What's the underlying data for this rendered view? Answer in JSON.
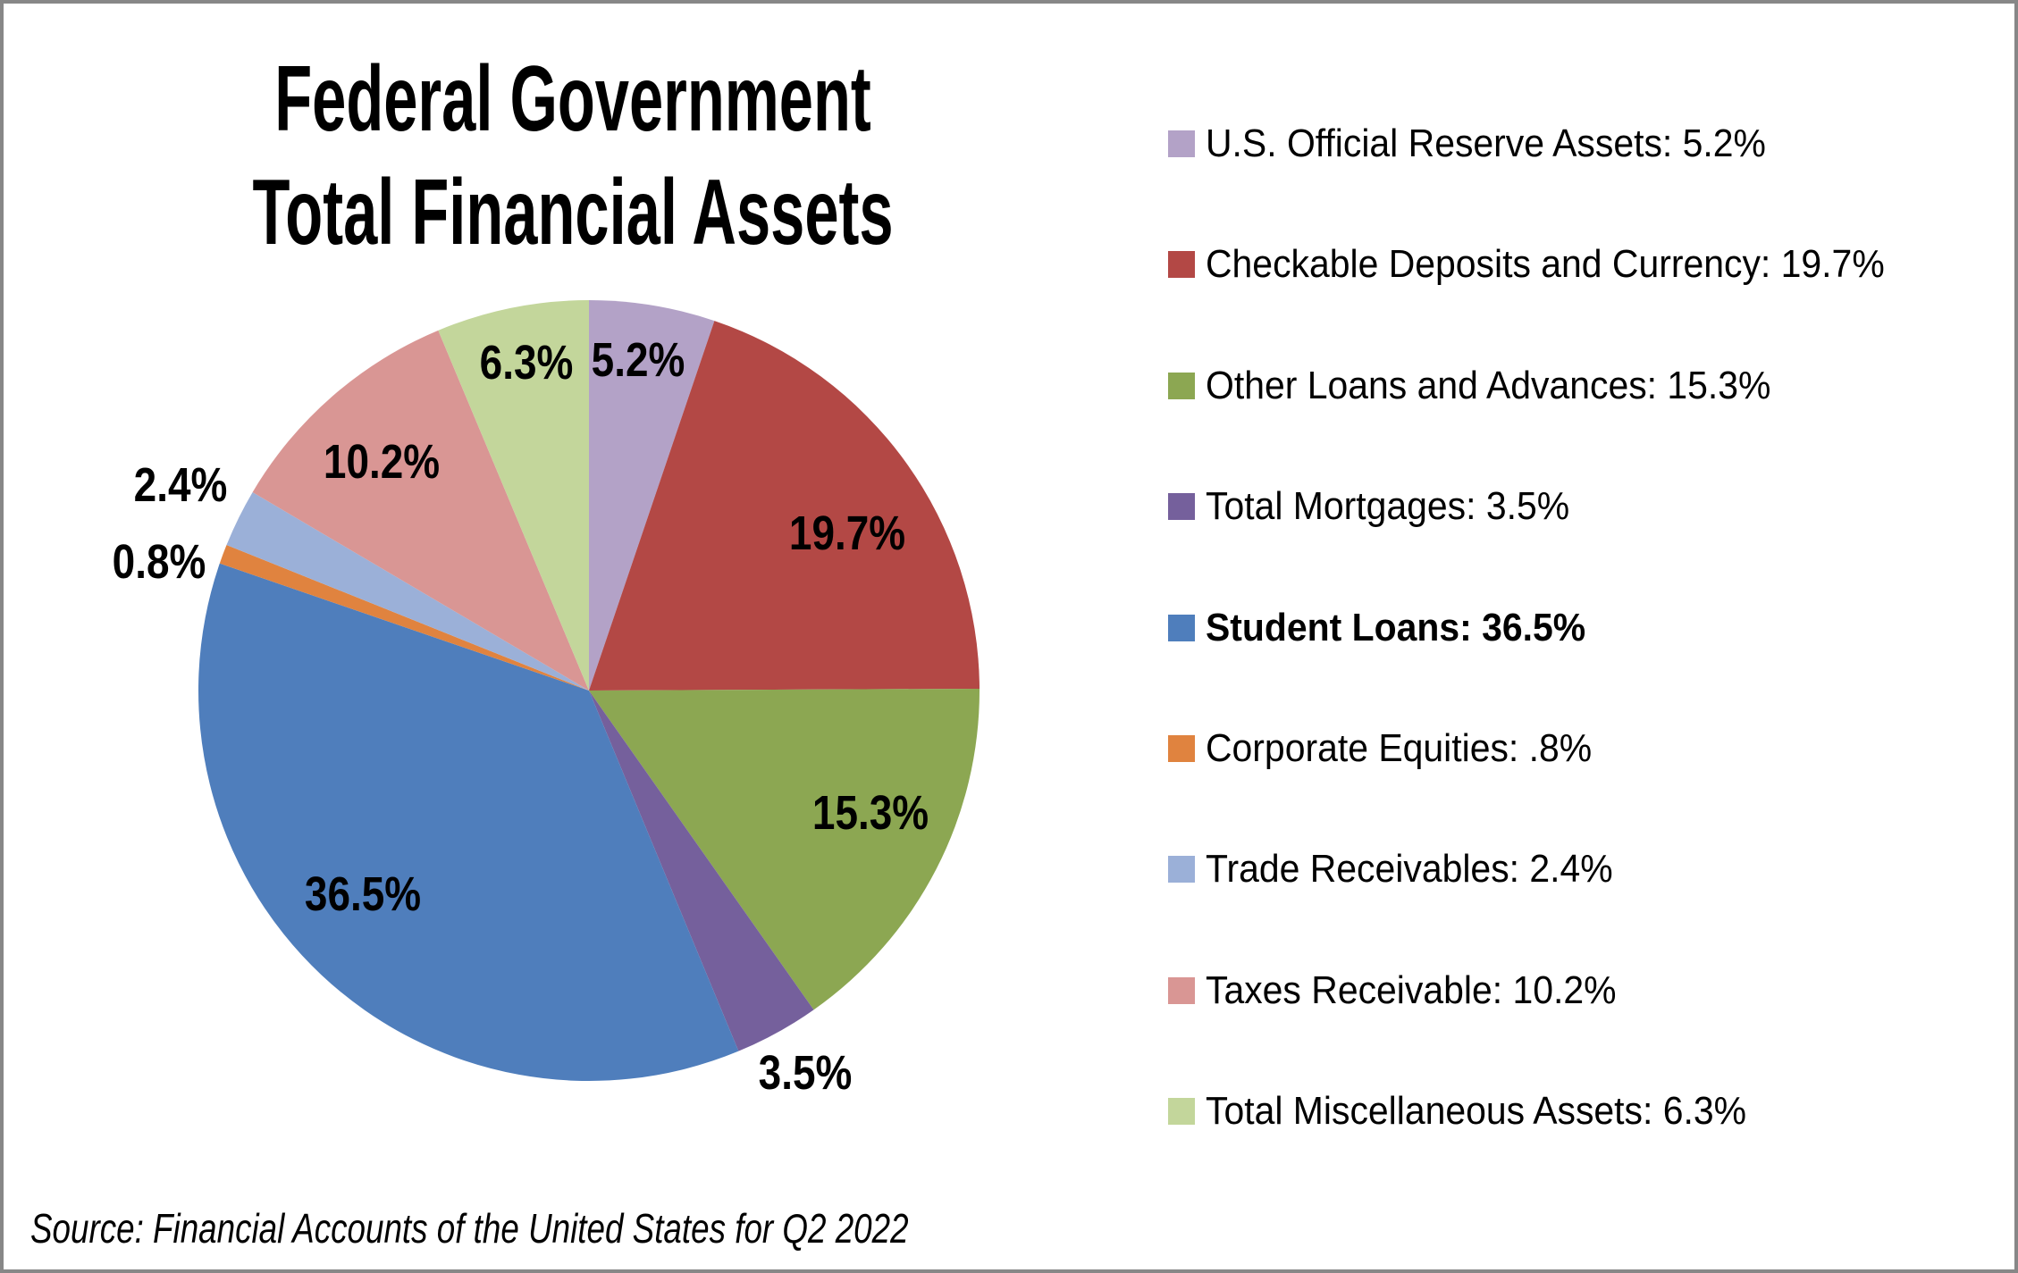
{
  "title": {
    "line1": "Federal Government",
    "line2": "Total Financial Assets"
  },
  "source_note": "Source: Financial Accounts of the United States for Q2 2022",
  "chart_data": {
    "type": "pie",
    "title": "Federal Government Total Financial Assets",
    "legend_position": "right",
    "start_angle_deg": 0,
    "direction": "clockwise",
    "total_percent": 99.9,
    "slices": [
      {
        "label": "U.S. Official Reserve Assets",
        "value": 5.2,
        "pie_label": "5.2%",
        "legend_text": "U.S. Official Reserve Assets: 5.2%",
        "color": "#B3A2C7",
        "bold_legend": false
      },
      {
        "label": "Checkable Deposits and Currency",
        "value": 19.7,
        "pie_label": "19.7%",
        "legend_text": "Checkable Deposits and Currency: 19.7%",
        "color": "#B34845",
        "bold_legend": false
      },
      {
        "label": "Other Loans and Advances",
        "value": 15.3,
        "pie_label": "15.3%",
        "legend_text": "Other Loans and Advances: 15.3%",
        "color": "#8CA752",
        "bold_legend": false
      },
      {
        "label": "Total Mortgages",
        "value": 3.5,
        "pie_label": "3.5%",
        "legend_text": "Total Mortgages: 3.5%",
        "color": "#75609C",
        "bold_legend": false
      },
      {
        "label": "Student Loans",
        "value": 36.5,
        "pie_label": "36.5%",
        "legend_text": "Student Loans: 36.5%",
        "color": "#4F7EBC",
        "bold_legend": true
      },
      {
        "label": "Corporate Equities",
        "value": 0.8,
        "pie_label": "0.8%",
        "legend_text": "Corporate Equities: .8%",
        "color": "#E0833F",
        "bold_legend": false
      },
      {
        "label": "Trade Receivables",
        "value": 2.4,
        "pie_label": "2.4%",
        "legend_text": "Trade Receivables: 2.4%",
        "color": "#9BB0D8",
        "bold_legend": false
      },
      {
        "label": "Taxes Receivable",
        "value": 10.2,
        "pie_label": "10.2%",
        "legend_text": "Taxes Receivable: 10.2%",
        "color": "#D99694",
        "bold_legend": false
      },
      {
        "label": "Total Miscellaneous Assets",
        "value": 6.3,
        "pie_label": "6.3%",
        "legend_text": "Total Miscellaneous Assets: 6.3%",
        "color": "#C3D69B",
        "bold_legend": false
      }
    ]
  }
}
